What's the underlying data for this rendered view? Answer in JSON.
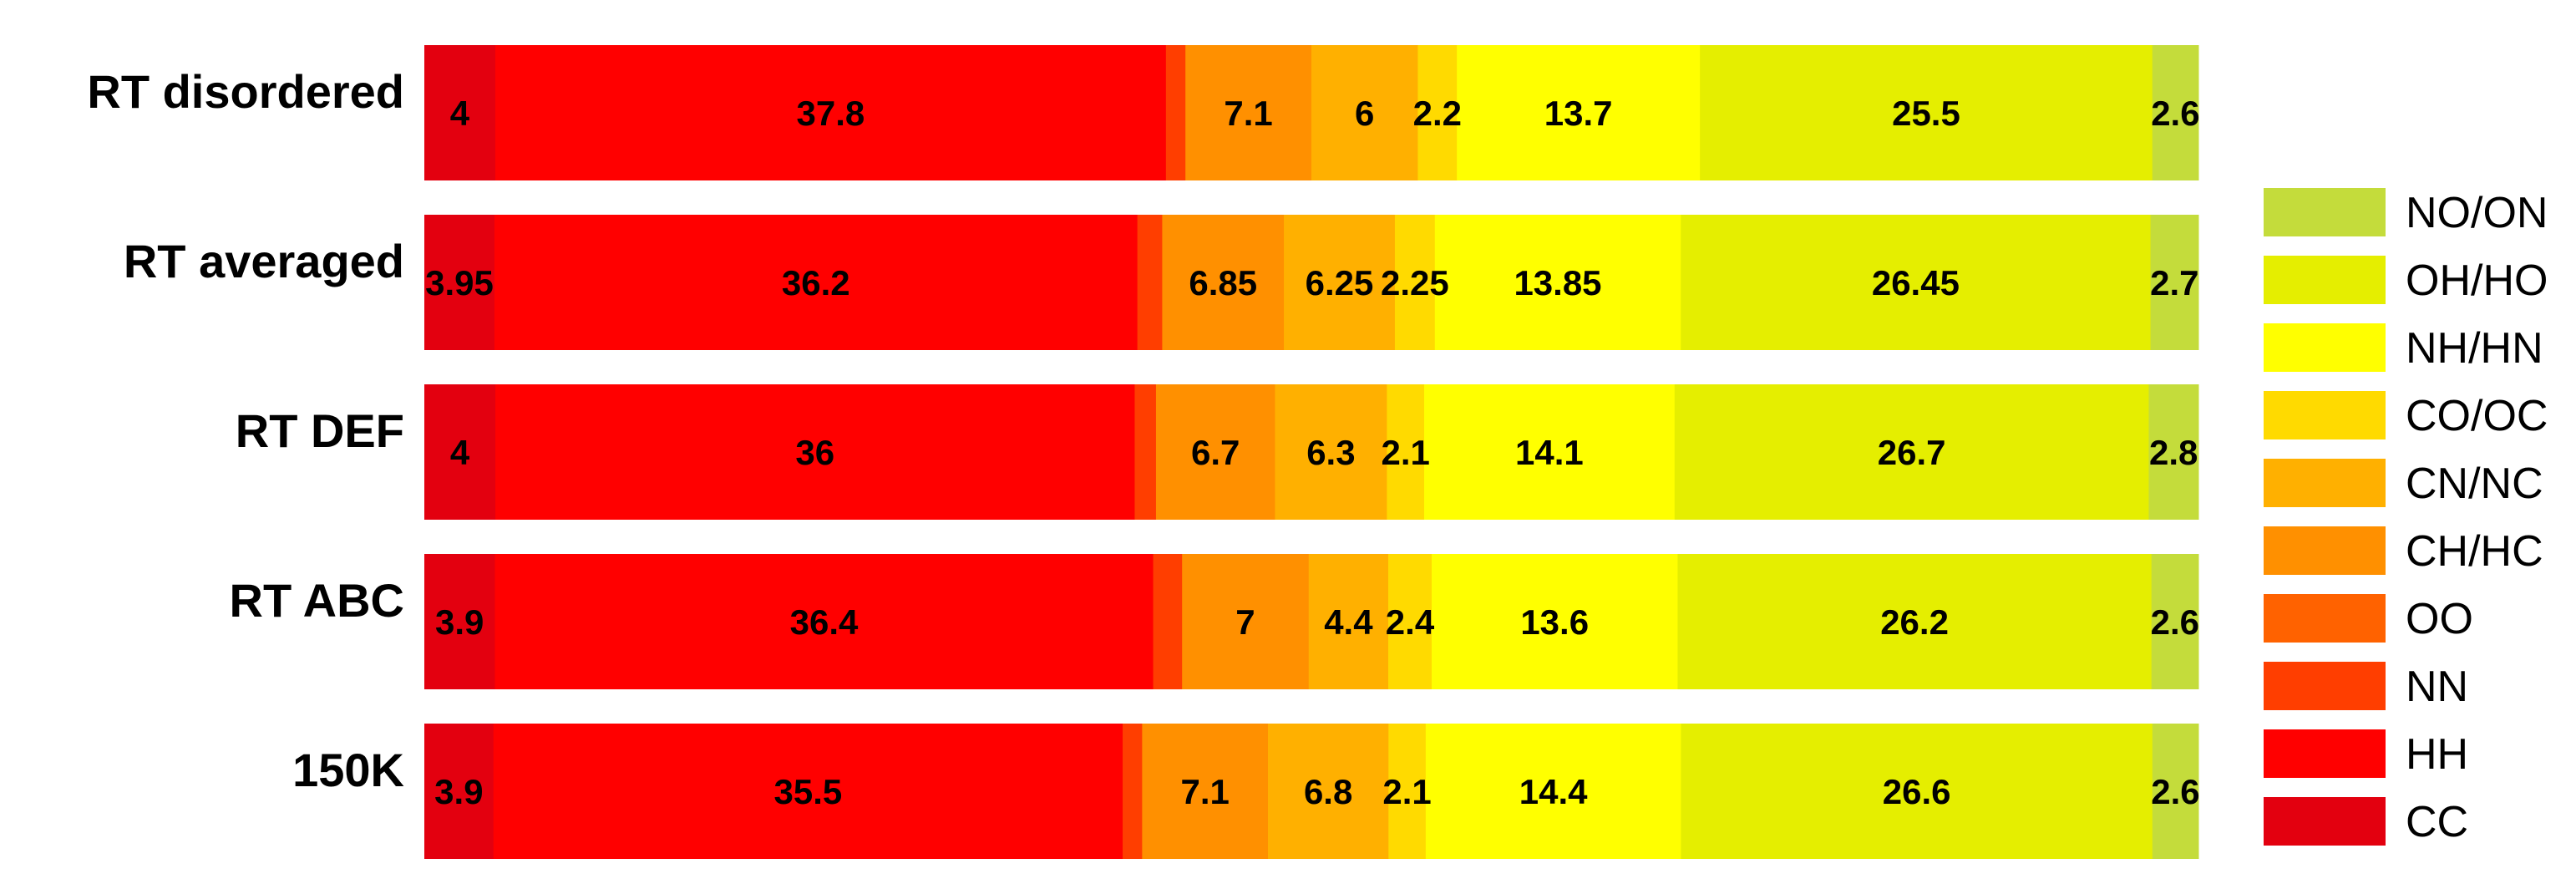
{
  "chart_data": {
    "type": "bar",
    "orientation": "horizontal",
    "stacked": true,
    "title": "",
    "xlabel": "",
    "ylabel": "",
    "grid": false,
    "legend_position": "right",
    "categories": [
      "RT disordered",
      "RT averaged",
      "RT DEF",
      "RT ABC",
      "150K"
    ],
    "series": [
      {
        "name": "CC",
        "color": "#E3000F",
        "values": [
          4,
          3.95,
          4,
          3.9,
          3.9
        ],
        "labels": [
          "4",
          "3.95",
          "4",
          "3.9",
          "3.9"
        ]
      },
      {
        "name": "HH",
        "color": "#FF0000",
        "values": [
          37.8,
          36.2,
          36,
          36.4,
          35.5
        ],
        "labels": [
          "37.8",
          "36.2",
          "36",
          "36.4",
          "35.5"
        ]
      },
      {
        "name": "NN",
        "color": "#FF3E00",
        "values": [
          1.1,
          1.4,
          1.2,
          1.6,
          1.1
        ],
        "labels": [
          "",
          "",
          "",
          "",
          ""
        ]
      },
      {
        "name": "OO",
        "color": "#FF6200",
        "values": [
          0,
          0,
          0,
          0,
          0
        ],
        "labels": [
          "",
          "",
          "",
          "",
          ""
        ]
      },
      {
        "name": "CH/HC",
        "color": "#FF9000",
        "values": [
          7.1,
          6.85,
          6.7,
          7,
          7.1
        ],
        "labels": [
          "7.1",
          "6.85",
          "6.7",
          "7",
          "7.1"
        ]
      },
      {
        "name": "CN/NC",
        "color": "#FFB000",
        "values": [
          6,
          6.25,
          6.3,
          4.4,
          6.8
        ],
        "labels": [
          "6",
          "6.25",
          "6.3",
          "4.4",
          "6.8"
        ]
      },
      {
        "name": "CO/OC",
        "color": "#FFDA00",
        "values": [
          2.2,
          2.25,
          2.1,
          2.4,
          2.1
        ],
        "labels": [
          "2.2",
          "2.25",
          "2.1",
          "2.4",
          "2.1"
        ]
      },
      {
        "name": "NH/HN",
        "color": "#FFFF00",
        "values": [
          13.7,
          13.85,
          14.1,
          13.6,
          14.4
        ],
        "labels": [
          "13.7",
          "13.85",
          "14.1",
          "13.6",
          "14.4"
        ]
      },
      {
        "name": "OH/HO",
        "color": "#E5EE00",
        "values": [
          25.5,
          26.45,
          26.7,
          26.2,
          26.6
        ],
        "labels": [
          "25.5",
          "26.45",
          "26.7",
          "26.2",
          "26.6"
        ]
      },
      {
        "name": "NO/ON",
        "color": "#C4DC3B",
        "values": [
          2.6,
          2.7,
          2.8,
          2.6,
          2.6
        ],
        "labels": [
          "2.6",
          "2.7",
          "2.8",
          "2.6",
          "2.6"
        ]
      }
    ],
    "legend_order": [
      "NO/ON",
      "OH/HO",
      "NH/HN",
      "CO/OC",
      "CN/NC",
      "CH/HC",
      "OO",
      "NN",
      "HH",
      "CC"
    ]
  }
}
